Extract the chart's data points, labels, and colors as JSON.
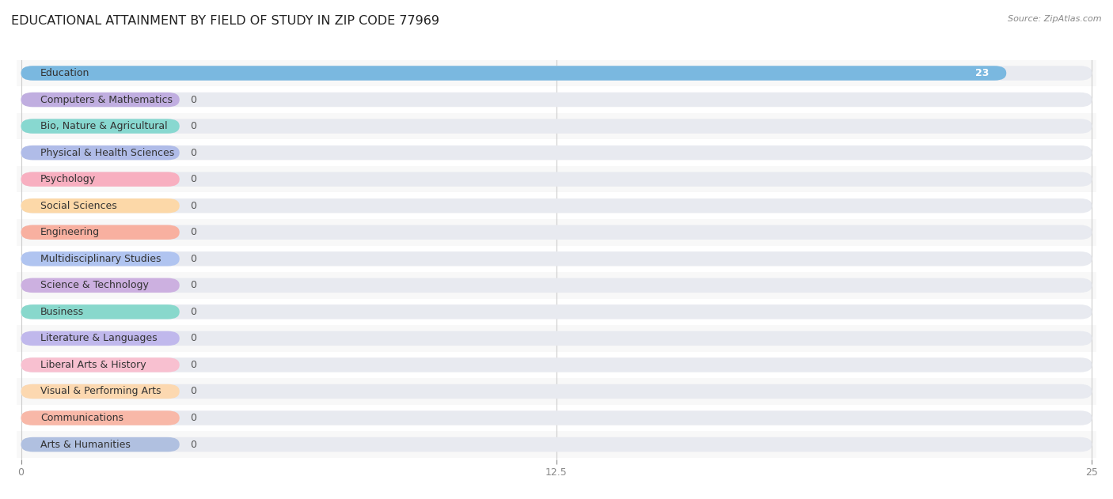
{
  "title": "EDUCATIONAL ATTAINMENT BY FIELD OF STUDY IN ZIP CODE 77969",
  "source": "Source: ZipAtlas.com",
  "categories": [
    "Education",
    "Computers & Mathematics",
    "Bio, Nature & Agricultural",
    "Physical & Health Sciences",
    "Psychology",
    "Social Sciences",
    "Engineering",
    "Multidisciplinary Studies",
    "Science & Technology",
    "Business",
    "Literature & Languages",
    "Liberal Arts & History",
    "Visual & Performing Arts",
    "Communications",
    "Arts & Humanities"
  ],
  "values": [
    23,
    0,
    0,
    0,
    0,
    0,
    0,
    0,
    0,
    0,
    0,
    0,
    0,
    0,
    0
  ],
  "bar_colors": [
    "#7ab8e0",
    "#c0aee0",
    "#88d8d0",
    "#b0bce8",
    "#f8afc0",
    "#fcd8a8",
    "#f8b0a0",
    "#b0c4f0",
    "#ccb0e0",
    "#88d8cc",
    "#c0b8ec",
    "#f8c0d0",
    "#fcd8b0",
    "#f8b8a8",
    "#b0c0e0"
  ],
  "bg_bar_color": "#e8eaf0",
  "row_bg_even": "#f8f8f8",
  "row_bg_odd": "#ffffff",
  "xlim": [
    0,
    25
  ],
  "xticks": [
    0,
    12.5,
    25
  ],
  "background_color": "#ffffff",
  "title_fontsize": 11.5,
  "label_fontsize": 9,
  "value_label_color_white": "#ffffff",
  "value_label_color_dark": "#555555",
  "grid_color": "#cccccc",
  "tick_color": "#888888"
}
